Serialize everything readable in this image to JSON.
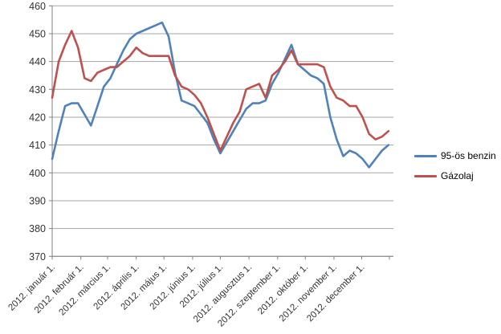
{
  "chart_data": {
    "type": "line",
    "title": "",
    "x_labels": [
      "2012. január 1.",
      "2012. február 1.",
      "2012. március 1.",
      "2012. április 1.",
      "2012. május 1.",
      "2012. június 1.",
      "2012. július 1.",
      "2012. augusztus 1.",
      "2012. szeptember 1.",
      "2012. október 1.",
      "2012. november 1.",
      "2012. december 1."
    ],
    "x_tick_days": [
      0,
      31,
      60,
      91,
      121,
      152,
      182,
      213,
      244,
      274,
      305,
      335
    ],
    "x_domain_days": [
      0,
      365
    ],
    "point_step_days": 7,
    "ylim": [
      370,
      460
    ],
    "y_ticks": [
      370,
      380,
      390,
      400,
      410,
      420,
      430,
      440,
      450,
      460
    ],
    "grid": true,
    "legend_position": "right-middle",
    "series": [
      {
        "name": "95-ös benzin",
        "color": "#4F81BD",
        "values": [
          405,
          415,
          424,
          425,
          425,
          421,
          417,
          424,
          431,
          434,
          439,
          444,
          448,
          450,
          451,
          452,
          453,
          454,
          449,
          436,
          426,
          425,
          424,
          421,
          418,
          412,
          407,
          411,
          415,
          419,
          423,
          425,
          425,
          426,
          432,
          436,
          441,
          446,
          439,
          437,
          435,
          434,
          432,
          420,
          412,
          406,
          408,
          407,
          405,
          402,
          405,
          408,
          410
        ]
      },
      {
        "name": "Gázolaj",
        "color": "#C0504D",
        "values": [
          427,
          440,
          446,
          451,
          445,
          434,
          433,
          436,
          437,
          438,
          438,
          440,
          442,
          445,
          443,
          442,
          442,
          442,
          442,
          435,
          431,
          430,
          428,
          425,
          420,
          414,
          408,
          413,
          418,
          422,
          430,
          431,
          432,
          427,
          435,
          437,
          440,
          444,
          439,
          439,
          439,
          439,
          438,
          431,
          427,
          426,
          424,
          424,
          420,
          414,
          412,
          413,
          415
        ]
      }
    ],
    "colors": {
      "gridline": "#A6A6A6",
      "axis": "#808080",
      "label": "#333333",
      "background": "#FFFFFF"
    }
  }
}
